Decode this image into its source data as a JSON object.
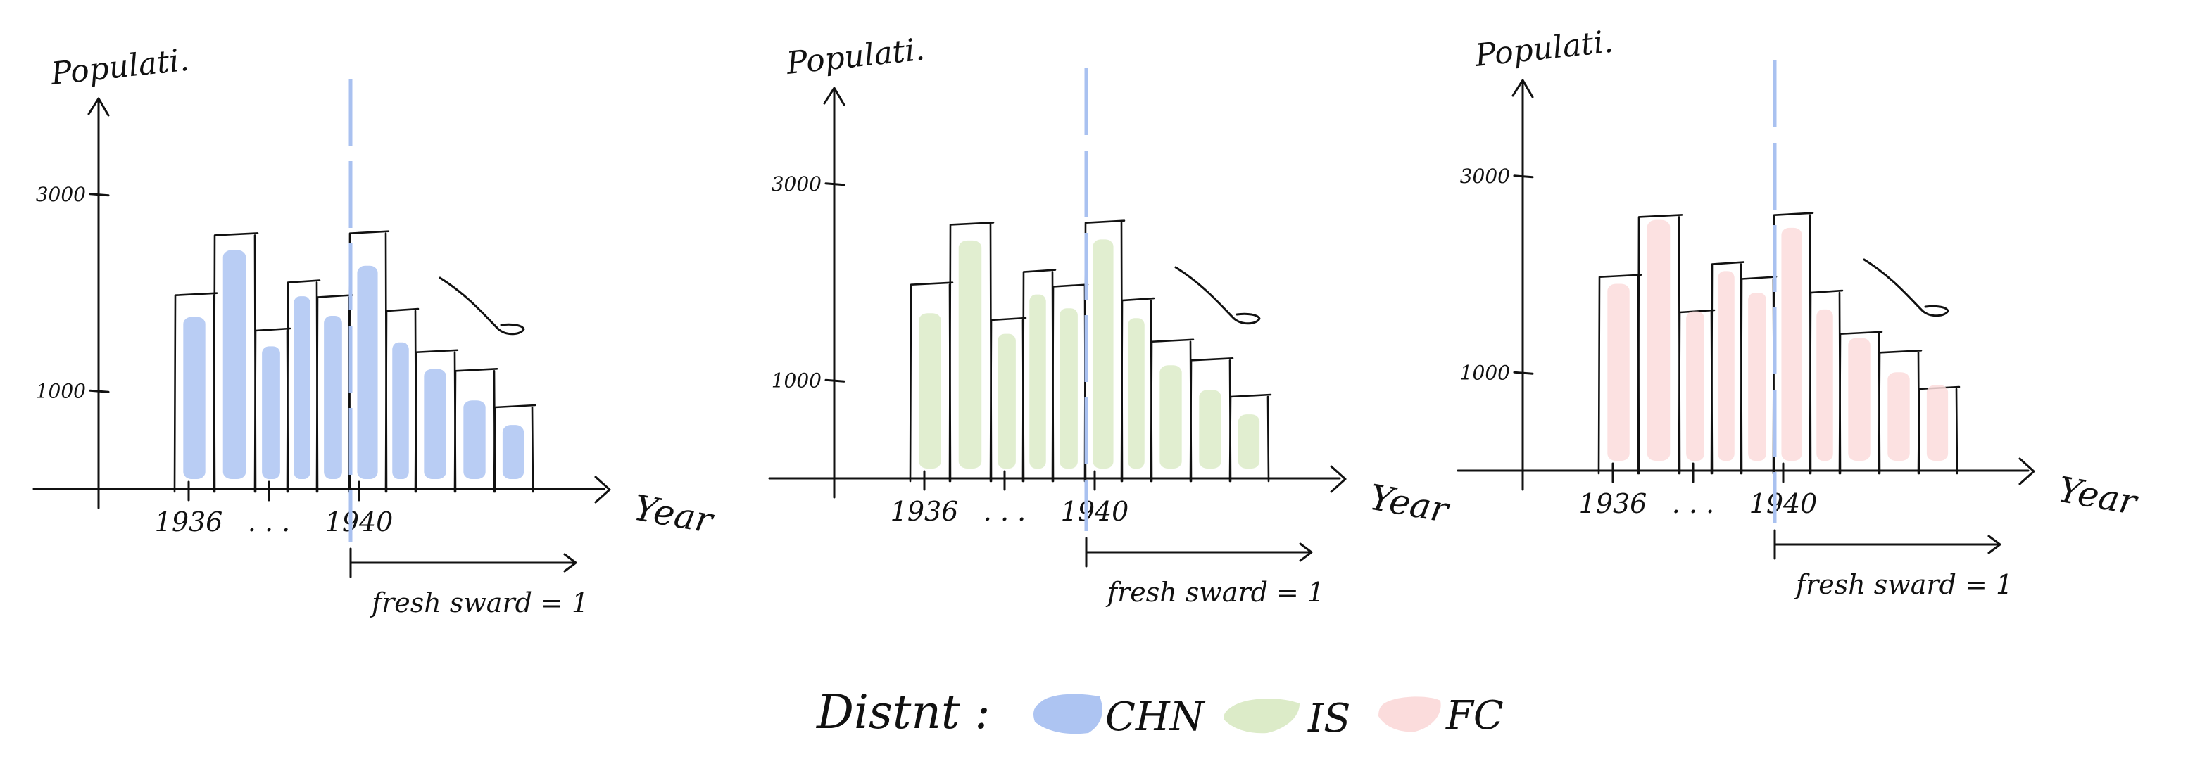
{
  "colors": {
    "CHN": "#adc4f2",
    "IS": "#dcebc8",
    "FC": "#fbdcdc",
    "marker": "#a9c1f0",
    "ink": "#111111"
  },
  "legend": {
    "title": "Distnt :",
    "items": [
      {
        "key": "CHN",
        "label": "CHN"
      },
      {
        "key": "IS",
        "label": "IS"
      },
      {
        "key": "FC",
        "label": "FC"
      }
    ]
  },
  "chart_data": [
    {
      "type": "bar",
      "series_key": "CHN",
      "ylabel": "Populati.",
      "xlabel": "Year",
      "yticks": [
        {
          "value": 3000,
          "label": "3000"
        },
        {
          "value": 1000,
          "label": "1000"
        }
      ],
      "ylim": [
        0,
        3900
      ],
      "xticks": [
        {
          "bar": 0,
          "label": "1936"
        },
        {
          "bar": 2,
          "label": ". . ."
        },
        {
          "bar": 5,
          "label": "1940"
        }
      ],
      "marker_after_bar": 4,
      "marker_label": "fresh sward = 1",
      "outline": [
        1970,
        2580,
        1610,
        2100,
        1950,
        2600,
        1810,
        1390,
        1200,
        830
      ],
      "values": [
        1750,
        2430,
        1450,
        1960,
        1760,
        2270,
        1490,
        1220,
        900,
        650
      ]
    },
    {
      "type": "bar",
      "series_key": "IS",
      "ylabel": "Populati.",
      "xlabel": "Year",
      "yticks": [
        {
          "value": 3000,
          "label": "3000"
        },
        {
          "value": 1000,
          "label": "1000"
        }
      ],
      "ylim": [
        0,
        3900
      ],
      "xticks": [
        {
          "bar": 0,
          "label": "1936"
        },
        {
          "bar": 2,
          "label": ". . ."
        },
        {
          "bar": 5,
          "label": "1940"
        }
      ],
      "marker_after_bar": 4,
      "marker_label": "fresh sward = 1",
      "outline": [
        1970,
        2580,
        1610,
        2100,
        1950,
        2600,
        1810,
        1390,
        1200,
        830
      ],
      "values": [
        1680,
        2420,
        1470,
        1870,
        1730,
        2430,
        1630,
        1150,
        900,
        650
      ]
    },
    {
      "type": "bar",
      "series_key": "FC",
      "ylabel": "Populati.",
      "xlabel": "Year",
      "yticks": [
        {
          "value": 3000,
          "label": "3000"
        },
        {
          "value": 1000,
          "label": "1000"
        }
      ],
      "ylim": [
        0,
        3900
      ],
      "xticks": [
        {
          "bar": 0,
          "label": "1936"
        },
        {
          "bar": 2,
          "label": ". . ."
        },
        {
          "bar": 5,
          "label": "1940"
        }
      ],
      "marker_after_bar": 4,
      "marker_label": "fresh sward = 1",
      "outline": [
        1970,
        2580,
        1610,
        2100,
        1950,
        2600,
        1810,
        1390,
        1200,
        830
      ],
      "values": [
        1900,
        2550,
        1620,
        2030,
        1810,
        2470,
        1640,
        1350,
        1000,
        870
      ]
    }
  ]
}
